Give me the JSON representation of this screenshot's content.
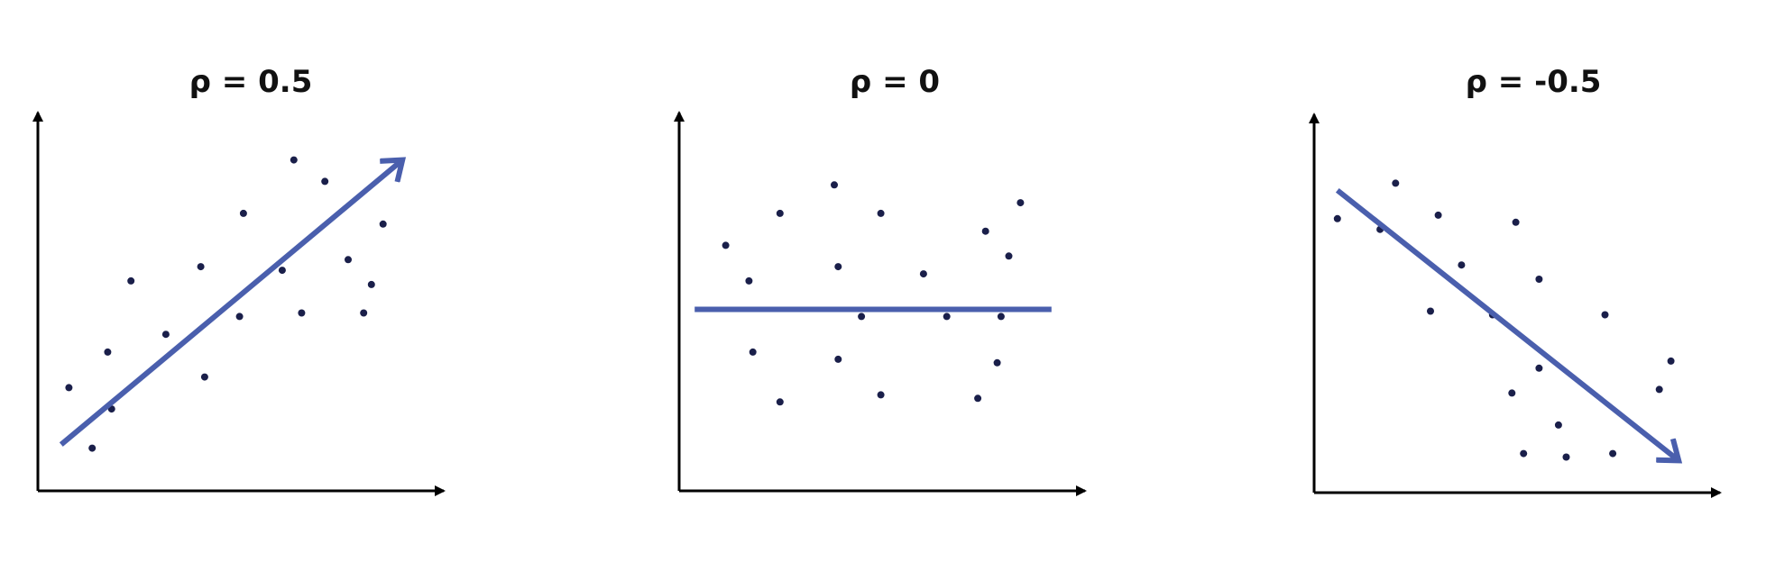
{
  "colors": {
    "trend": "#4a5fad",
    "points": "#1a1f4a",
    "axes": "#000000",
    "background": "#ffffff"
  },
  "chart_data": [
    {
      "type": "scatter",
      "title": "ρ = 0.5",
      "xlabel": "",
      "ylabel": "",
      "xlim": [
        0,
        10
      ],
      "ylim": [
        0,
        10
      ],
      "grid": false,
      "trend": "increasing",
      "points": [
        [
          0.8,
          2.9
        ],
        [
          1.4,
          1.2
        ],
        [
          1.8,
          3.9
        ],
        [
          1.9,
          2.3
        ],
        [
          2.4,
          5.9
        ],
        [
          3.3,
          4.4
        ],
        [
          4.2,
          6.3
        ],
        [
          4.3,
          3.2
        ],
        [
          5.2,
          4.9
        ],
        [
          5.3,
          7.8
        ],
        [
          6.3,
          6.2
        ],
        [
          6.6,
          9.3
        ],
        [
          6.8,
          5.0
        ],
        [
          7.4,
          8.7
        ],
        [
          8.0,
          6.5
        ],
        [
          8.4,
          5.0
        ],
        [
          8.6,
          5.8
        ],
        [
          8.9,
          7.5
        ]
      ],
      "line": [
        [
          0.6,
          1.3
        ],
        [
          9.4,
          9.3
        ]
      ]
    },
    {
      "type": "scatter",
      "title": "ρ = 0",
      "xlabel": "",
      "ylabel": "",
      "xlim": [
        0,
        10
      ],
      "ylim": [
        0,
        10
      ],
      "grid": false,
      "trend": "flat",
      "points": [
        [
          1.2,
          6.9
        ],
        [
          1.8,
          5.9
        ],
        [
          1.9,
          3.9
        ],
        [
          2.6,
          7.8
        ],
        [
          2.6,
          2.5
        ],
        [
          4.0,
          8.6
        ],
        [
          4.1,
          6.3
        ],
        [
          4.1,
          3.7
        ],
        [
          4.7,
          4.9
        ],
        [
          5.2,
          7.8
        ],
        [
          5.2,
          2.7
        ],
        [
          6.3,
          6.1
        ],
        [
          6.9,
          4.9
        ],
        [
          7.7,
          2.6
        ],
        [
          7.9,
          7.3
        ],
        [
          8.2,
          3.6
        ],
        [
          8.3,
          4.9
        ],
        [
          8.5,
          6.6
        ],
        [
          8.8,
          8.1
        ]
      ],
      "line": [
        [
          0.4,
          5.1
        ],
        [
          9.6,
          5.1
        ]
      ]
    },
    {
      "type": "scatter",
      "title": "ρ = -0.5",
      "xlabel": "",
      "ylabel": "",
      "xlim": [
        0,
        10
      ],
      "ylim": [
        0,
        10
      ],
      "grid": false,
      "trend": "decreasing",
      "points": [
        [
          0.6,
          7.7
        ],
        [
          1.7,
          7.4
        ],
        [
          2.1,
          8.7
        ],
        [
          3.0,
          5.1
        ],
        [
          3.2,
          7.8
        ],
        [
          3.8,
          6.4
        ],
        [
          4.6,
          5.0
        ],
        [
          5.1,
          2.8
        ],
        [
          5.2,
          7.6
        ],
        [
          5.4,
          1.1
        ],
        [
          5.8,
          3.5
        ],
        [
          5.8,
          6.0
        ],
        [
          6.3,
          1.9
        ],
        [
          6.5,
          1.0
        ],
        [
          7.5,
          5.0
        ],
        [
          7.7,
          1.1
        ],
        [
          8.9,
          2.9
        ],
        [
          9.2,
          3.7
        ]
      ],
      "line": [
        [
          0.6,
          8.5
        ],
        [
          9.4,
          0.9
        ]
      ]
    }
  ]
}
